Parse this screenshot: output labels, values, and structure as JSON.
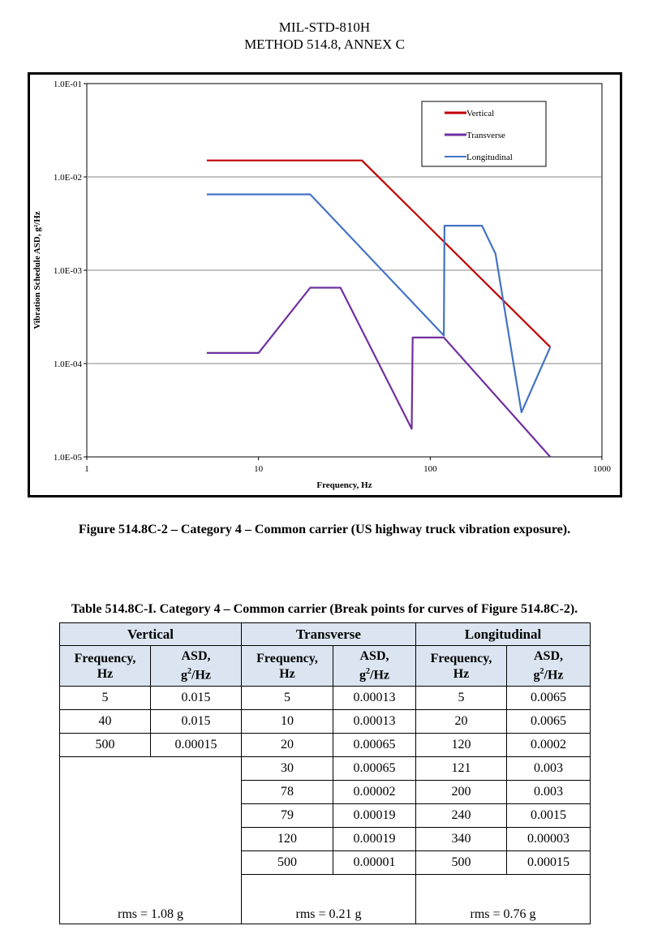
{
  "header": {
    "line1": "MIL-STD-810H",
    "line2": "METHOD 514.8, ANNEX C"
  },
  "figure_caption": "Figure 514.8C-2 – Category 4 – Common carrier (US highway truck vibration exposure).",
  "table_caption": "Table 514.8C-I.  Category 4 – Common carrier (Break points for curves of Figure 514.8C-2).",
  "chart_data": {
    "type": "line",
    "xlabel": "Frequency, Hz",
    "ylabel": "Vibration Schedule ASD, g²/Hz",
    "xscale": "log",
    "yscale": "log",
    "xlim": [
      1,
      1000
    ],
    "ylim": [
      1e-05,
      0.1
    ],
    "xticks": [
      "1",
      "10",
      "100",
      "1000"
    ],
    "yticks": [
      "1.0E-05",
      "1.0E-04",
      "1.0E-03",
      "1.0E-02",
      "1.0E-01"
    ],
    "grid": "horizontal",
    "legend_position": "top-right",
    "series": [
      {
        "name": "Vertical",
        "color": "#c00000",
        "x": [
          5,
          40,
          500
        ],
        "y": [
          0.015,
          0.015,
          0.00015
        ]
      },
      {
        "name": "Transverse",
        "color": "#7030a0",
        "x": [
          5,
          10,
          20,
          30,
          78,
          79,
          120,
          500
        ],
        "y": [
          0.00013,
          0.00013,
          0.00065,
          0.00065,
          2e-05,
          0.00019,
          0.00019,
          1e-05
        ]
      },
      {
        "name": "Longitudinal",
        "color": "#4472c4",
        "x": [
          5,
          20,
          120,
          121,
          200,
          240,
          340,
          500
        ],
        "y": [
          0.0065,
          0.0065,
          0.0002,
          0.003,
          0.003,
          0.0015,
          3e-05,
          0.00015
        ]
      }
    ]
  },
  "table": {
    "groups": [
      "Vertical",
      "Transverse",
      "Longitudinal"
    ],
    "freq_header": [
      "Frequency,",
      "Hz"
    ],
    "asd_header": [
      "ASD,",
      "g",
      "2",
      "/Hz"
    ],
    "vertical": [
      [
        "5",
        "0.015"
      ],
      [
        "40",
        "0.015"
      ],
      [
        "500",
        "0.00015"
      ]
    ],
    "transverse": [
      [
        "5",
        "0.00013"
      ],
      [
        "10",
        "0.00013"
      ],
      [
        "20",
        "0.00065"
      ],
      [
        "30",
        "0.00065"
      ],
      [
        "78",
        "0.00002"
      ],
      [
        "79",
        "0.00019"
      ],
      [
        "120",
        "0.00019"
      ],
      [
        "500",
        "0.00001"
      ]
    ],
    "longitudinal": [
      [
        "5",
        "0.0065"
      ],
      [
        "20",
        "0.0065"
      ],
      [
        "120",
        "0.0002"
      ],
      [
        "121",
        "0.003"
      ],
      [
        "200",
        "0.003"
      ],
      [
        "240",
        "0.0015"
      ],
      [
        "340",
        "0.00003"
      ],
      [
        "500",
        "0.00015"
      ]
    ],
    "rms": [
      "rms = 1.08 g",
      "rms = 0.21 g",
      "rms = 0.76 g"
    ]
  }
}
